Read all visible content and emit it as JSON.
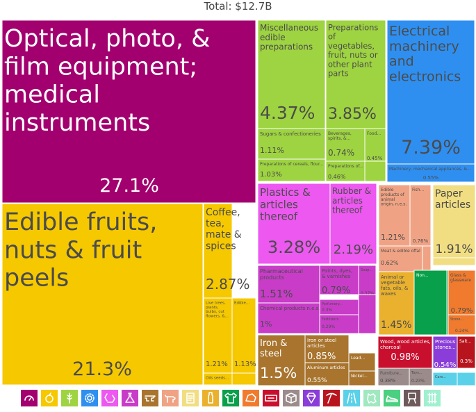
{
  "chart_data": {
    "type": "treemap",
    "title": "Total: $12.7B",
    "cells": [
      {
        "label": "Optical, photo, & film equipment; medical instruments",
        "value": "27.1%",
        "color": "#a3006f",
        "group": "instruments"
      },
      {
        "label": "Edible fruits, nuts & fruit peels",
        "value": "21.3%",
        "color": "#f5c800",
        "group": "vegetable"
      },
      {
        "label": "Coffee, tea, mate & spices",
        "value": "2.87%",
        "color": "#f5c800",
        "group": "vegetable"
      },
      {
        "label": "Live trees, plants, bulbs, cut flowers, &...",
        "value": "1.21%",
        "color": "#f5c800",
        "group": "vegetable"
      },
      {
        "label": "Edible...",
        "value": "1.13%",
        "color": "#f5c800",
        "group": "vegetable"
      },
      {
        "label": "Oils seeds...",
        "value": "",
        "color": "#f5c800",
        "group": "vegetable"
      },
      {
        "label": "",
        "value": "",
        "color": "#f5c800",
        "group": "vegetable"
      },
      {
        "label": "Miscellaneous edible preparations",
        "value": "4.37%",
        "color": "#9ed341",
        "group": "foodstuffs"
      },
      {
        "label": "Preparations of vegetables, fruit, nuts or other plant parts",
        "value": "3.85%",
        "color": "#9ed341",
        "group": "foodstuffs"
      },
      {
        "label": "Sugars & confectioneries",
        "value": "1.11%",
        "color": "#9ed341",
        "group": "foodstuffs"
      },
      {
        "label": "Beverages, spirits, &...",
        "value": "0.74%",
        "color": "#9ed341",
        "group": "foodstuffs"
      },
      {
        "label": "Food...",
        "value": "0.45%",
        "color": "#9ed341",
        "group": "foodstuffs"
      },
      {
        "label": "Preparations of cereals, flour...",
        "value": "1.03%",
        "color": "#9ed341",
        "group": "foodstuffs"
      },
      {
        "label": "Preparations of...",
        "value": "0.46%",
        "color": "#9ed341",
        "group": "foodstuffs"
      },
      {
        "label": "",
        "value": "",
        "color": "#9ed341",
        "group": "foodstuffs"
      },
      {
        "label": "Electrical machinery and electronics",
        "value": "7.39%",
        "color": "#2f8ff0",
        "group": "machines"
      },
      {
        "label": "Machinery, mechanical appliances, &...",
        "value": "0.55%",
        "color": "#2f8ff0",
        "group": "machines"
      },
      {
        "label": "Plastics & articles thereof",
        "value": "3.28%",
        "color": "#ec58f0",
        "group": "plastics"
      },
      {
        "label": "Rubber & articles thereof",
        "value": "2.19%",
        "color": "#ec58f0",
        "group": "plastics"
      },
      {
        "label": "Edible products of animal origin, n.e.s.",
        "value": "1.21%",
        "color": "#f0a384",
        "group": "animal"
      },
      {
        "label": "Fish...",
        "value": "0.76%",
        "color": "#f0a384",
        "group": "animal"
      },
      {
        "label": "Meat & edible offal",
        "value": "0.62%",
        "color": "#f0a384",
        "group": "animal"
      },
      {
        "label": "",
        "value": "",
        "color": "#f0a384",
        "group": "animal"
      },
      {
        "label": "Paper articles",
        "value": "1.91%",
        "color": "#f2de82",
        "group": "paper"
      },
      {
        "label": "",
        "value": "",
        "color": "#f2de82",
        "group": "paper"
      },
      {
        "label": "Pharmaceutical products",
        "value": "1.51%",
        "color": "#c83cc8",
        "group": "chemicals"
      },
      {
        "label": "Paints, dyes, & varnishes",
        "value": "0.79%",
        "color": "#c83cc8",
        "group": "chemicals"
      },
      {
        "label": "Soap...",
        "value": "0.37%",
        "color": "#c83cc8",
        "group": "chemicals"
      },
      {
        "label": "Chemical products n.e.s.",
        "value": "1%",
        "color": "#c83cc8",
        "group": "chemicals"
      },
      {
        "label": "Perfumery...",
        "value": "0.3%",
        "color": "#c83cc8",
        "group": "chemicals"
      },
      {
        "label": "Fertilizers",
        "value": "0.29%",
        "color": "#c83cc8",
        "group": "chemicals"
      },
      {
        "label": "",
        "value": "",
        "color": "#c83cc8",
        "group": "chemicals"
      },
      {
        "label": "Animal or vegetable fats, oils, & waxes",
        "value": "1.45%",
        "color": "#e9b12e",
        "group": "fats"
      },
      {
        "label": "Non...",
        "value": "",
        "color": "#08a04a",
        "group": "textiles"
      },
      {
        "label": "",
        "value": "",
        "color": "#08a04a",
        "group": "textiles"
      },
      {
        "label": "Glass & glassware",
        "value": "0.79%",
        "color": "#f07b2e",
        "group": "stone"
      },
      {
        "label": "Stone...",
        "value": "0.24%",
        "color": "#f07b2e",
        "group": "stone"
      },
      {
        "label": "Iron & steel",
        "value": "1.5%",
        "color": "#a8742e",
        "group": "metals"
      },
      {
        "label": "Iron or steel articles",
        "value": "0.85%",
        "color": "#a8742e",
        "group": "metals"
      },
      {
        "label": "Aluminum articles",
        "value": "0.55%",
        "color": "#a8742e",
        "group": "metals"
      },
      {
        "label": "Lead...",
        "value": "",
        "color": "#a8742e",
        "group": "metals"
      },
      {
        "label": "Nickel...",
        "value": "",
        "color": "#a8742e",
        "group": "metals"
      },
      {
        "label": "Wood, wood articles, & charcoal",
        "value": "0.98%",
        "color": "#c8102e",
        "group": "wood"
      },
      {
        "label": "Furniture...",
        "value": "0.38%",
        "color": "#9b8b8b",
        "group": "misc"
      },
      {
        "label": "Toys...",
        "value": "0.23%",
        "color": "#9b8b8b",
        "group": "misc"
      },
      {
        "label": "Precious stones...",
        "value": "0.54%",
        "color": "#8a3dd8",
        "group": "precious"
      },
      {
        "label": "Salt...",
        "value": "0.3%",
        "color": "#b8141e",
        "group": "mineral"
      },
      {
        "label": "Cars...",
        "value": "",
        "color": "#5ad1e8",
        "group": "transport"
      },
      {
        "label": "",
        "value": "",
        "color": "#5ad1e8",
        "group": "transport"
      }
    ],
    "legend": [
      {
        "icon": "instruments-icon",
        "color": "#a3006f"
      },
      {
        "icon": "fruit-icon",
        "color": "#f5c800"
      },
      {
        "icon": "wheat-icon",
        "color": "#9ed341"
      },
      {
        "icon": "gear-icon",
        "color": "#2f8ff0"
      },
      {
        "icon": "recycle-icon",
        "color": "#ec58f0"
      },
      {
        "icon": "flask-icon",
        "color": "#c83cc8"
      },
      {
        "icon": "anvil-icon",
        "color": "#a8742e"
      },
      {
        "icon": "cow-icon",
        "color": "#f0a384"
      },
      {
        "icon": "scroll-icon",
        "color": "#f2de82"
      },
      {
        "icon": "bottle-icon",
        "color": "#e9b12e"
      },
      {
        "icon": "shirt-icon",
        "color": "#08a04a"
      },
      {
        "icon": "rock-icon",
        "color": "#f07b2e"
      },
      {
        "icon": "ticket-icon",
        "color": "#c8102e"
      },
      {
        "icon": "box-icon",
        "color": "#9b8b8b"
      },
      {
        "icon": "gem-icon",
        "color": "#8a3dd8"
      },
      {
        "icon": "pickaxe-icon",
        "color": "#b8141e"
      },
      {
        "icon": "road-icon",
        "color": "#5ad1e8"
      },
      {
        "icon": "leather-icon",
        "color": "#a0e8c0"
      },
      {
        "icon": "shoe-icon",
        "color": "#4ad080"
      },
      {
        "icon": "easel-icon",
        "color": "#6e5a5a"
      },
      {
        "icon": "fabric-icon",
        "color": "#a0f0d0"
      }
    ]
  }
}
